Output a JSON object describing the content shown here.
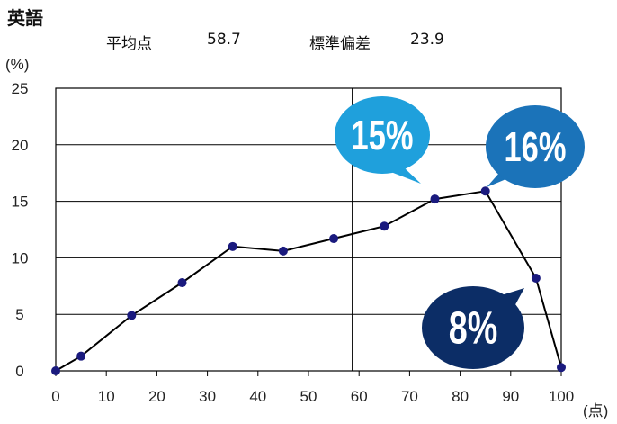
{
  "page": {
    "title": "英語",
    "stats": {
      "mean_label": "平均点",
      "mean_value": "58.7",
      "sd_label": "標準偏差",
      "sd_value": "23.9"
    }
  },
  "colors": {
    "line": "#000000",
    "marker": "#1a1a7e",
    "grid": "#000000",
    "bubble_light": "#1fa0dc",
    "bubble_mid": "#1b73b9",
    "bubble_dark": "#0c2d66"
  },
  "chart_data": {
    "type": "line",
    "title": "英語",
    "xlabel": "(点)",
    "ylabel": "(%)",
    "xlim": [
      0,
      100
    ],
    "ylim": [
      0,
      25
    ],
    "xticks": [
      0,
      10,
      20,
      30,
      40,
      50,
      60,
      70,
      80,
      90,
      100
    ],
    "yticks": [
      0,
      5,
      10,
      15,
      20,
      25
    ],
    "grid": "horizontal",
    "series": [
      {
        "x": [
          0,
          5,
          15,
          25,
          35,
          45,
          55,
          65,
          75,
          85,
          95,
          100
        ],
        "y": [
          0.0,
          1.3,
          4.9,
          7.8,
          11.0,
          10.6,
          11.7,
          12.8,
          15.2,
          15.9,
          8.2,
          0.3
        ]
      }
    ],
    "reference_line": {
      "x": 58.7
    },
    "annotations": [
      {
        "text": "15%",
        "style": "light"
      },
      {
        "text": "16%",
        "style": "mid"
      },
      {
        "text": "8%",
        "style": "dark"
      }
    ]
  }
}
